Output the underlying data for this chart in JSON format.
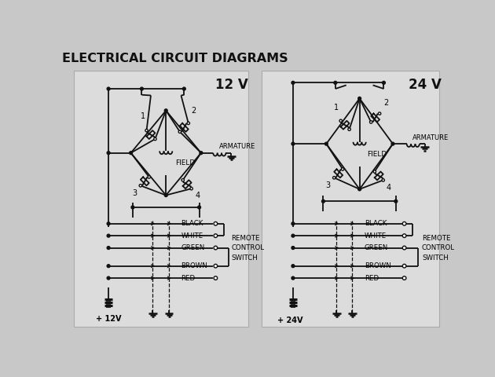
{
  "title": "ELECTRICAL CIRCUIT DIAGRAMS",
  "bg_color": "#c8c8c8",
  "panel_color": "#e2e2e2",
  "line_color": "#111111",
  "font_color": "#111111",
  "label_12v": "12 V",
  "label_24v": "24 V",
  "wire_labels": [
    "BLACK",
    "WHITE",
    "GREEN",
    "BROWN",
    "RED"
  ],
  "remote_label": "REMOTE\nCONTROL\nSWITCH",
  "field_label": "FIELD",
  "armature_label": "ARMATURE",
  "battery_label_12v": "+ 12V",
  "battery_label_24v": "+ 24V",
  "solenoid_labels": [
    "1",
    "2",
    "3",
    "4"
  ]
}
